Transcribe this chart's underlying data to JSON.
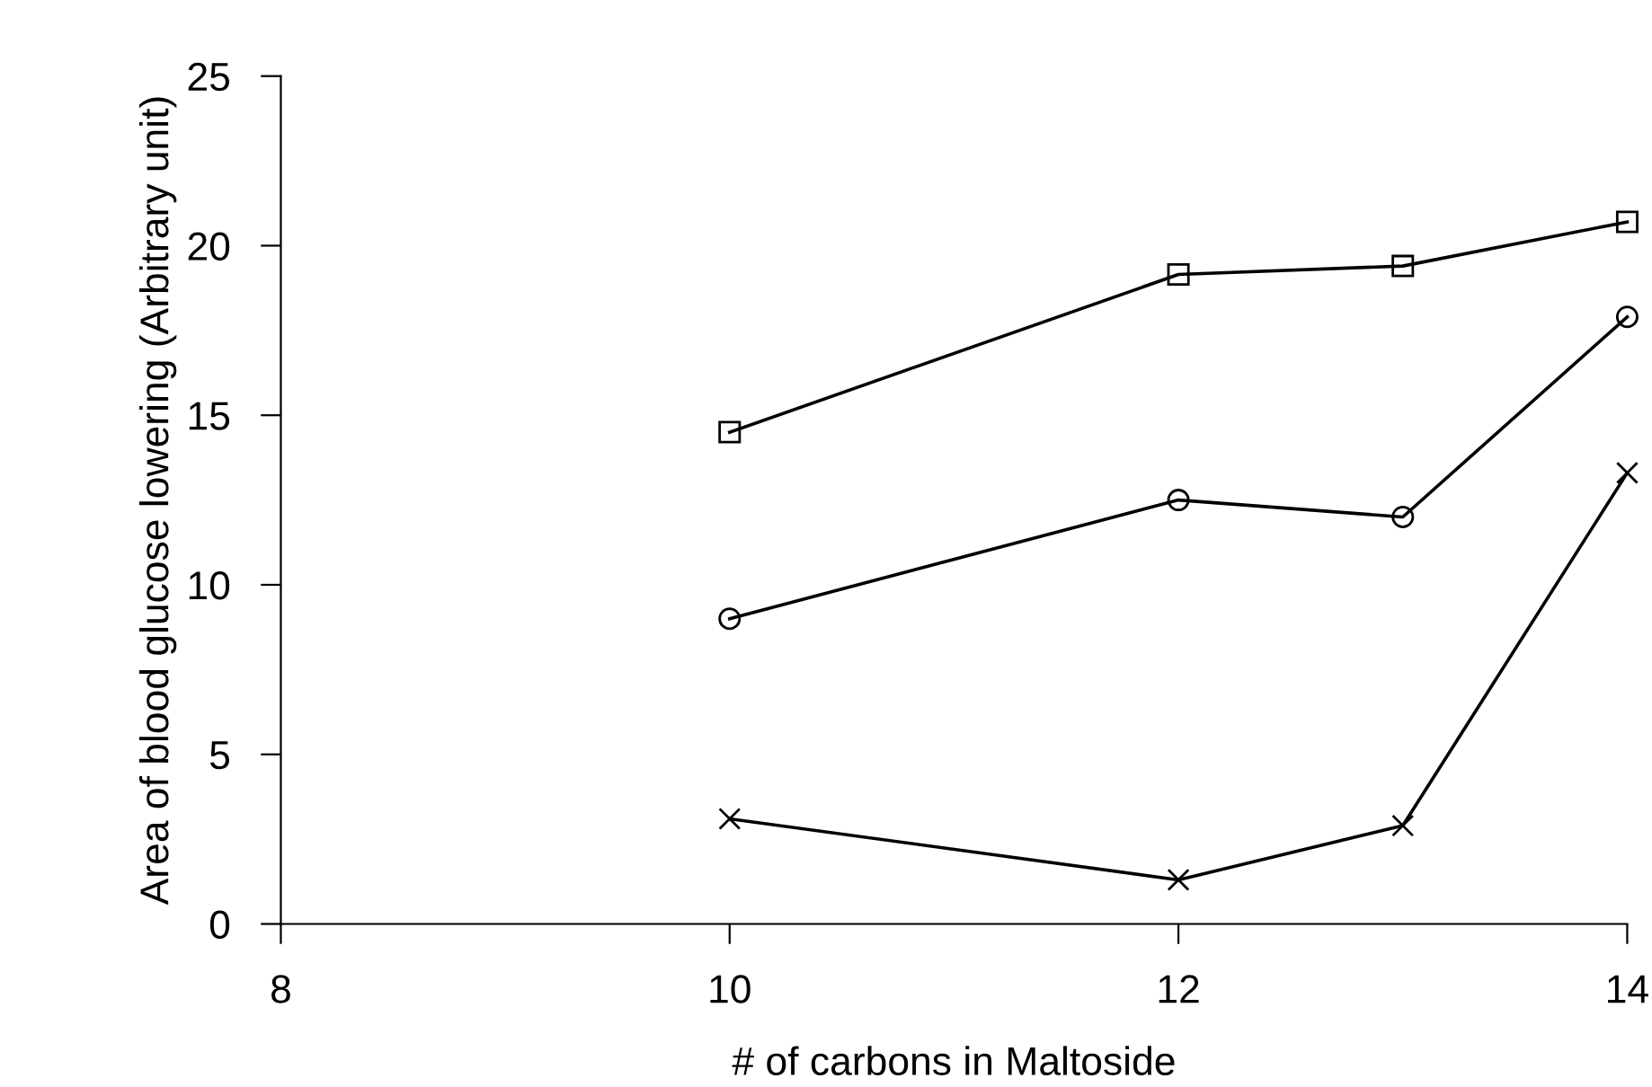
{
  "chart_data": {
    "type": "line",
    "xlabel": "# of carbons in Maltoside",
    "ylabel": "Area of blood glucose lowering (Arbitrary unit)",
    "series": [
      {
        "x": [
          10,
          12,
          13,
          14
        ],
        "values": [
          14.5,
          19.15,
          19.4,
          20.7
        ],
        "color": "#000000",
        "marker": "square"
      },
      {
        "x": [
          10,
          12,
          13,
          14
        ],
        "values": [
          9.0,
          12.5,
          12.0,
          17.9
        ],
        "color": "#000000",
        "marker": "circle"
      },
      {
        "x": [
          10,
          12,
          13,
          14
        ],
        "values": [
          3.1,
          1.3,
          2.9,
          13.3
        ],
        "color": "#000000",
        "marker": "cross"
      }
    ],
    "xlim": [
      8,
      14
    ],
    "xticks": [
      8,
      10,
      12,
      14
    ],
    "ylim": [
      0,
      25
    ],
    "yticks": [
      0,
      5,
      10,
      15,
      20,
      25
    ],
    "grid": false,
    "legend": false,
    "line_style": "solid"
  }
}
